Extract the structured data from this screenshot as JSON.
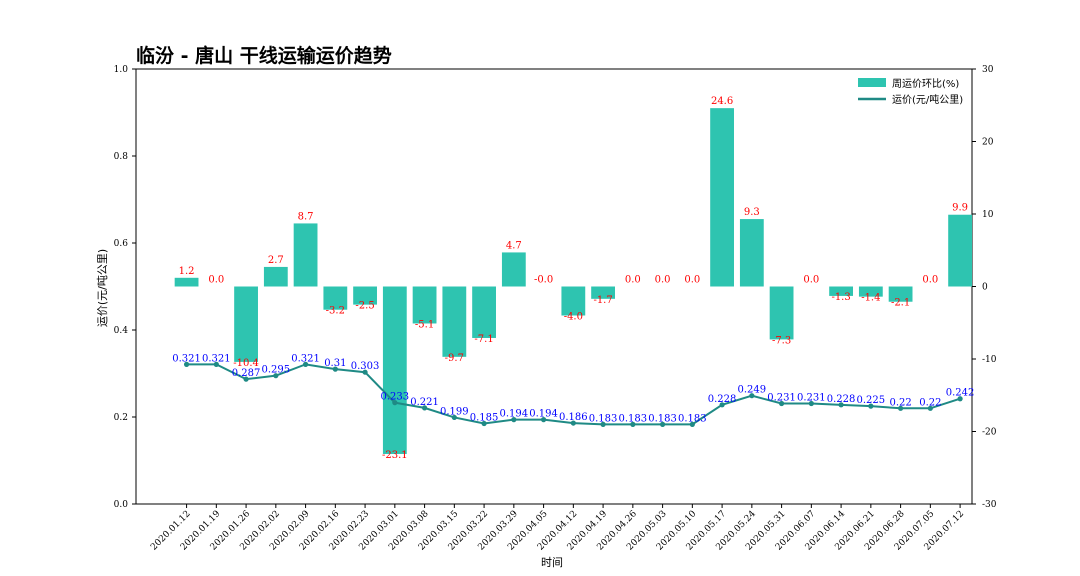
{
  "chart_data": {
    "type": "bar+line",
    "title": "临汾 - 唐山 干线运输运价趋势",
    "xlabel": "时间",
    "ylabel_left": "运价(元/吨公里)",
    "ylim_left": [
      0.0,
      1.0
    ],
    "yticks_left": [
      "0.0",
      "0.2",
      "0.4",
      "0.6",
      "0.8",
      "1.0"
    ],
    "ylim_right": [
      -30,
      30
    ],
    "yticks_right": [
      "-30",
      "-20",
      "-10",
      "0",
      "10",
      "20",
      "30"
    ],
    "legend_position": "top-right",
    "categories": [
      "2020.01.12",
      "2020.01.19",
      "2020.01.26",
      "2020.02.02",
      "2020.02.09",
      "2020.02.16",
      "2020.02.23",
      "2020.03.01",
      "2020.03.08",
      "2020.03.15",
      "2020.03.22",
      "2020.03.29",
      "2020.04.05",
      "2020.04.12",
      "2020.04.19",
      "2020.04.26",
      "2020.05.03",
      "2020.05.10",
      "2020.05.17",
      "2020.05.24",
      "2020.05.31",
      "2020.06.07",
      "2020.06.14",
      "2020.06.21",
      "2020.06.28",
      "2020.07.05",
      "2020.07.12"
    ],
    "series": [
      {
        "name": "周运价环比(%)",
        "type": "bar",
        "axis": "right",
        "color": "#2ec4b0",
        "values": [
          1.2,
          0.0,
          -10.4,
          2.7,
          8.7,
          -3.2,
          -2.5,
          -23.1,
          -5.1,
          -9.7,
          -7.1,
          4.7,
          -0.0,
          -4.0,
          -1.7,
          0.0,
          0.0,
          0.0,
          24.6,
          9.3,
          -7.3,
          0.0,
          -1.3,
          -1.4,
          -2.1,
          0.0,
          9.9
        ],
        "labels": [
          "1.2",
          "0.0",
          "-10.4",
          "2.7",
          "8.7",
          "-3.2",
          "-2.5",
          "-23.1",
          "-5.1",
          "-9.7",
          "-7.1",
          "4.7",
          "-0.0",
          "-4.0",
          "-1.7",
          "0.0",
          "0.0",
          "0.0",
          "24.6",
          "9.3",
          "-7.3",
          "0.0",
          "-1.3",
          "-1.4",
          "-2.1",
          "0.0",
          "9.9"
        ]
      },
      {
        "name": "运价(元/吨公里)",
        "type": "line",
        "axis": "left",
        "color": "#1f8a85",
        "values": [
          0.321,
          0.321,
          0.287,
          0.295,
          0.321,
          0.31,
          0.303,
          0.233,
          0.221,
          0.199,
          0.185,
          0.194,
          0.194,
          0.186,
          0.183,
          0.183,
          0.183,
          0.183,
          0.228,
          0.249,
          0.231,
          0.231,
          0.228,
          0.225,
          0.22,
          0.22,
          0.242
        ],
        "labels": [
          "0.321",
          "0.321",
          "0.287",
          "0.295",
          "0.321",
          "0.31",
          "0.303",
          "0.233",
          "0.221",
          "0.199",
          "0.185",
          "0.194",
          "0.194",
          "0.186",
          "0.183",
          "0.183",
          "0.183",
          "0.183",
          "0.228",
          "0.249",
          "0.231",
          "0.231",
          "0.228",
          "0.225",
          "0.22",
          "0.22",
          "0.242"
        ]
      }
    ]
  }
}
